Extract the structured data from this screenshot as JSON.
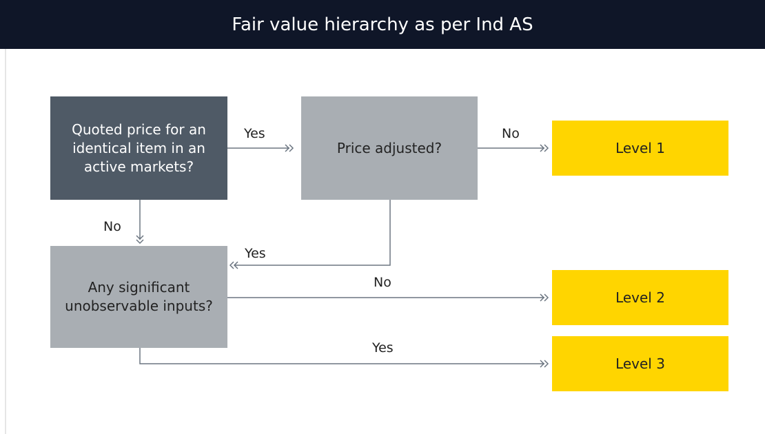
{
  "header": {
    "title": "Fair value hierarchy as per Ind AS"
  },
  "nodes": [
    {
      "label": "Quoted price for an identical item in an active markets?"
    },
    {
      "label": "Price adjusted?"
    },
    {
      "label": "Level 1"
    },
    {
      "label": "Any significant unobservable inputs?"
    },
    {
      "label": "Level 2"
    },
    {
      "label": "Level 3"
    }
  ],
  "edges": [
    {
      "label": "Yes"
    },
    {
      "label": "No"
    },
    {
      "label": "No"
    },
    {
      "label": "Yes"
    },
    {
      "label": "No"
    },
    {
      "label": "Yes"
    }
  ]
}
